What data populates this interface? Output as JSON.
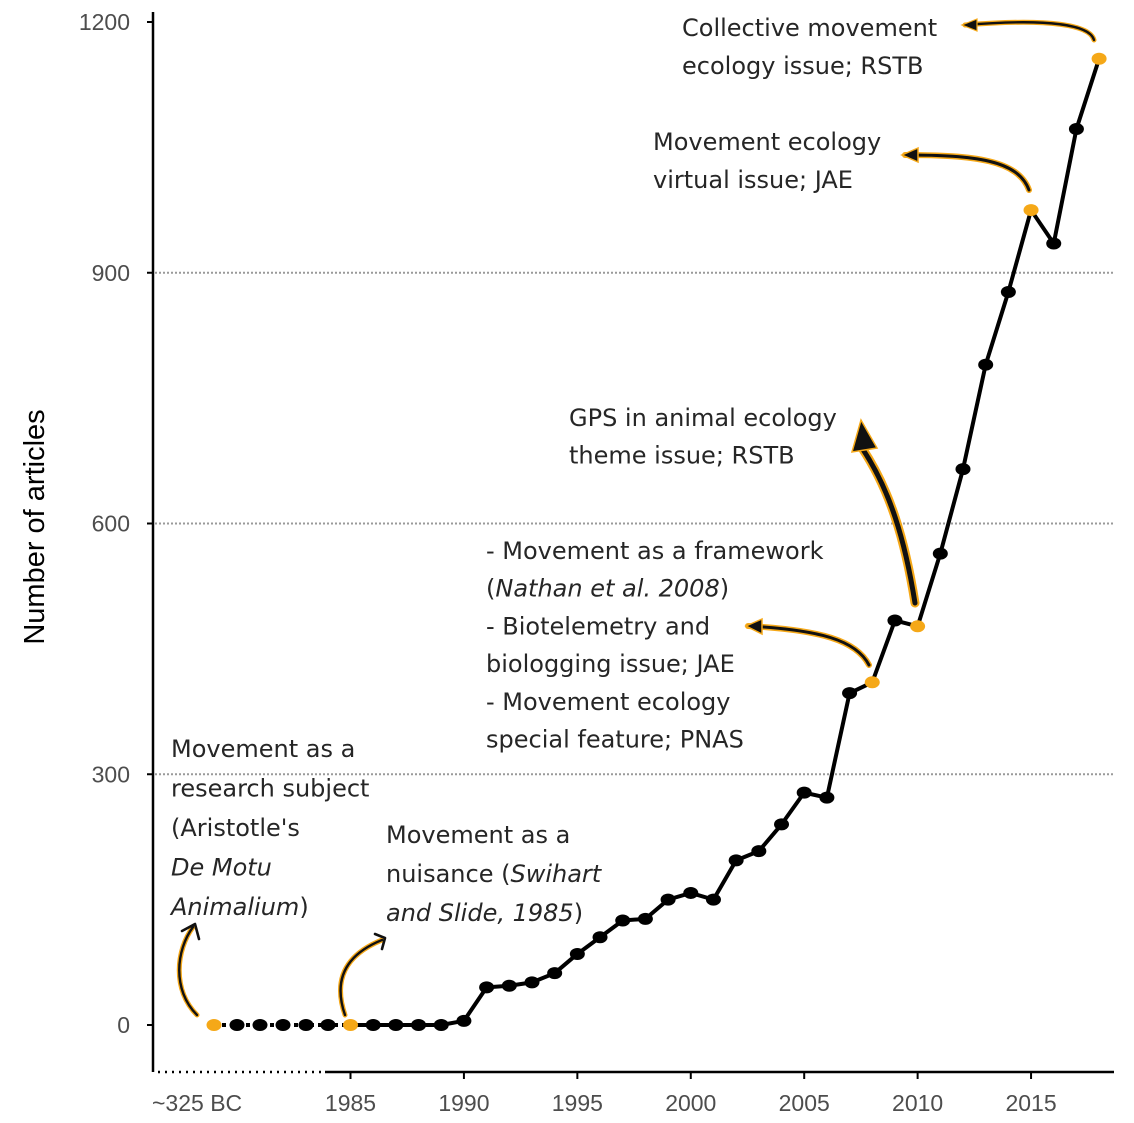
{
  "chart_data": {
    "type": "line",
    "ylabel": "Number of articles",
    "ylim": [
      -75,
      1250
    ],
    "yticks": [
      0,
      300,
      600,
      900,
      1200
    ],
    "xtick_labels": [
      "~325 BC",
      "1985",
      "1990",
      "1995",
      "2000",
      "2005",
      "2010",
      "2015"
    ],
    "grid": "horizontal dotted at 300, 600, 900",
    "colors": {
      "line": "#000000",
      "point": "#000000",
      "highlight": "#f5a818"
    },
    "series": [
      {
        "x": [
          "~325 BC",
          "",
          "",
          "",
          "",
          "",
          1985,
          1986,
          1987,
          1988,
          1989,
          1990,
          1991,
          1992,
          1993,
          1994,
          1995,
          1996,
          1997,
          1998,
          1999,
          2000,
          2001,
          2002,
          2003,
          2004,
          2005,
          2006,
          2007,
          2008,
          2009,
          2010,
          2011,
          2012,
          2013,
          2014,
          2015,
          2016,
          2017,
          2018
        ],
        "values": [
          0,
          0,
          0,
          0,
          0,
          0,
          0,
          0,
          0,
          0,
          0,
          5,
          45,
          47,
          51,
          62,
          85,
          105,
          125,
          127,
          150,
          158,
          150,
          197,
          208,
          240,
          278,
          272,
          397,
          410,
          484,
          477,
          564,
          665,
          790,
          877,
          975,
          935,
          1072,
          1156
        ]
      }
    ],
    "highlighted": [
      "~325 BC",
      1985,
      2008,
      2010,
      2015,
      2018
    ],
    "annotations": [
      {
        "key": "aristotle",
        "lines": [
          [
            "Movement as a"
          ],
          [
            "research subject"
          ],
          [
            "(Aristotle's"
          ],
          [
            "De Motu"
          ],
          [
            "Animalium",
            ")"
          ]
        ]
      },
      {
        "key": "nuisance",
        "lines": [
          [
            "Movement as a"
          ],
          [
            "nuisance (",
            "Swihart"
          ],
          [
            "and Slide, 1985",
            ")"
          ]
        ]
      },
      {
        "key": "framework",
        "lines": [
          [
            "- Movement as a framework"
          ],
          [
            "(",
            "Nathan et al. 2008",
            ")"
          ],
          [
            "- Biotelemetry and"
          ],
          [
            "biologging issue; JAE"
          ],
          [
            "- Movement ecology"
          ],
          [
            "special feature; PNAS"
          ]
        ]
      },
      {
        "key": "gps",
        "lines": [
          [
            "GPS in animal ecology"
          ],
          [
            "theme issue; RSTB"
          ]
        ]
      },
      {
        "key": "virtual",
        "lines": [
          [
            "Movement ecology"
          ],
          [
            "virtual issue; JAE"
          ]
        ]
      },
      {
        "key": "collective",
        "lines": [
          [
            "Collective movement"
          ],
          [
            "ecology issue; RSTB"
          ]
        ]
      }
    ]
  }
}
